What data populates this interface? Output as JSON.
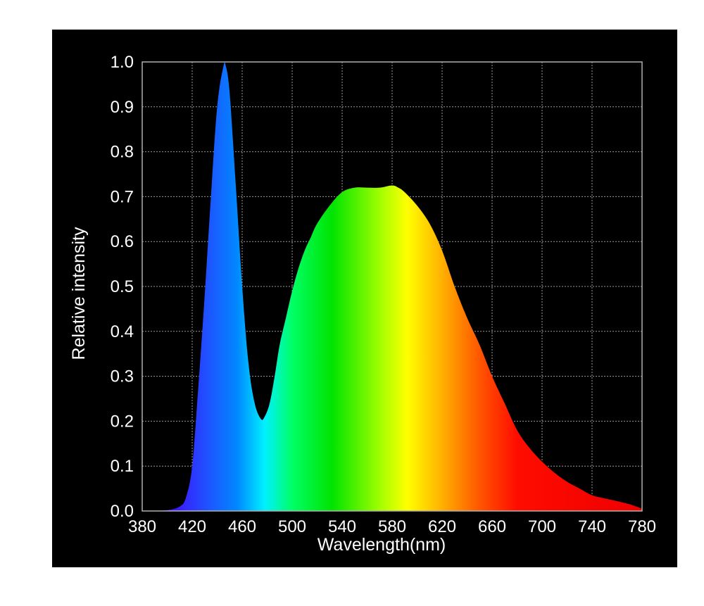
{
  "chart_data": {
    "type": "area",
    "title": "",
    "xlabel": "Wavelength(nm)",
    "ylabel": "Relative intensity",
    "xlim": [
      380,
      780
    ],
    "ylim": [
      0,
      1
    ],
    "grid": true,
    "x_ticks": [
      380,
      420,
      460,
      500,
      540,
      580,
      620,
      660,
      700,
      740,
      780
    ],
    "y_ticks": [
      "0.0",
      "0.1",
      "0.2",
      "0.3",
      "0.4",
      "0.5",
      "0.6",
      "0.7",
      "0.8",
      "0.9",
      "1.0"
    ],
    "fill": "visible-spectrum color gradient",
    "series": [
      {
        "x": [
          380,
          400,
          410,
          415,
          420,
          425,
          430,
          435,
          440,
          445,
          447,
          450,
          455,
          460,
          465,
          470,
          475,
          478,
          482,
          486,
          490,
          495,
          500,
          505,
          510,
          515,
          520,
          530,
          540,
          550,
          560,
          570,
          580,
          585,
          590,
          600,
          610,
          620,
          630,
          640,
          650,
          660,
          670,
          680,
          690,
          700,
          710,
          720,
          730,
          740,
          750,
          760,
          770,
          780
        ],
        "y": [
          0.0,
          0.002,
          0.01,
          0.03,
          0.1,
          0.28,
          0.48,
          0.7,
          0.9,
          0.99,
          0.99,
          0.93,
          0.72,
          0.5,
          0.33,
          0.24,
          0.205,
          0.21,
          0.24,
          0.3,
          0.37,
          0.43,
          0.49,
          0.54,
          0.58,
          0.61,
          0.64,
          0.68,
          0.71,
          0.72,
          0.72,
          0.72,
          0.725,
          0.72,
          0.71,
          0.68,
          0.64,
          0.58,
          0.5,
          0.43,
          0.37,
          0.3,
          0.24,
          0.18,
          0.14,
          0.11,
          0.085,
          0.065,
          0.05,
          0.035,
          0.028,
          0.022,
          0.015,
          0.005
        ]
      }
    ],
    "colors": {
      "background": "#000000",
      "grid": "#9a9a9a",
      "text": "#ffffff"
    }
  }
}
